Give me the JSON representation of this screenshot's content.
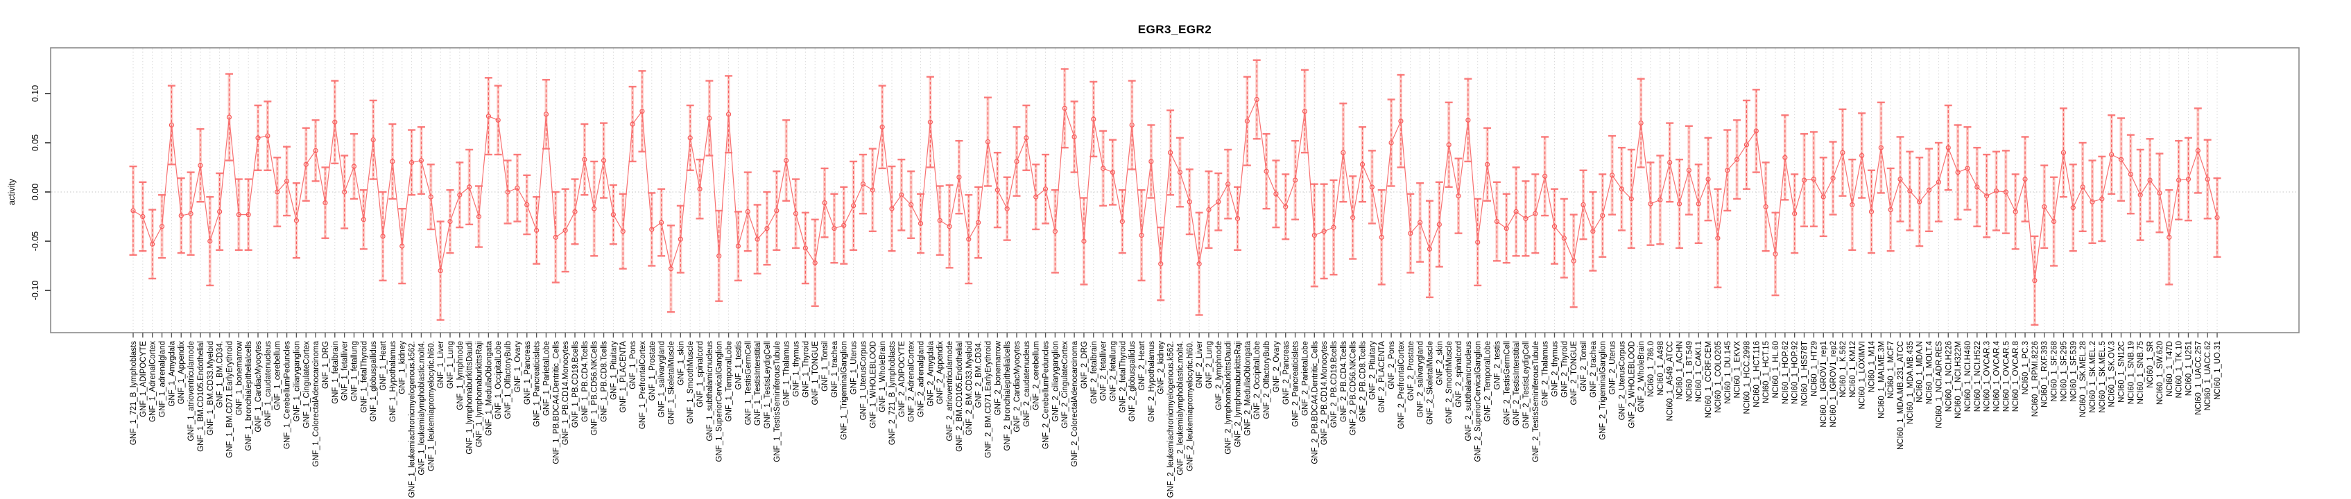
{
  "chart_data": {
    "type": "line",
    "title": "EGR3_EGR2",
    "ylabel": "activity",
    "xlabel": "",
    "ylim": [
      -0.145,
      0.147
    ],
    "yticks_labels": [
      "0.10",
      "0.05",
      "0.00",
      "-0.05",
      "-0.10"
    ],
    "ytick_values": [
      0.1,
      0.05,
      0.0,
      -0.05,
      -0.1
    ],
    "grid": {
      "vertical_dotted_per_category": true,
      "dotted_zero_line": true
    },
    "legend": null,
    "style": {
      "marker": "open-circle",
      "error_bars": true,
      "points_connected": true,
      "x_labels_rotated_90": true
    },
    "colors": {
      "series_line": "#f87070",
      "marker_stroke": "#f75b5b",
      "error_stem_dash": "#f75b5b",
      "error_band": "rgba(250,128,114,0.40)",
      "error_cap": "rgba(249,110,110,0.90)",
      "gridline": "#d9d9d9",
      "zero_line": "#c4c4c4",
      "axis_box": "#8a8a8a",
      "tick": "#555555",
      "text": "#000000",
      "background": "#ffffff"
    },
    "categories": [
      "GNF_1_721_B_lymphoblasts",
      "GNF_1_ADIPOCYTE",
      "GNF_1_AdrenalCortex",
      "GNF_1_adrenalgland",
      "GNF_1_Amygdala",
      "GNF_1_Appendix",
      "GNF_1_atrioventricularnode",
      "GNF_1_BM.CD105.Endothelial",
      "GNF_1_BM.CD33.Myeloid",
      "GNF_1_BM.CD34.",
      "GNF_1_BM.CD71.EarlyErythroid",
      "GNF_1_bonemarrow",
      "GNF_1_bronchialepithelialcells",
      "GNF_1_CardiacMyocytes",
      "GNF_1_caudatenucleus",
      "GNF_1_cerebellum",
      "GNF_1_CerebellumPeduncles",
      "GNF_1_ciliaryganglion",
      "GNF_1_CingulateCortex",
      "GNF_1_ColorectalAdenocarcinoma",
      "GNF_1_DRG",
      "GNF_1_fetalbrain",
      "GNF_1_fetalliver",
      "GNF_1_fetallung",
      "GNF_1_fetalThyroid",
      "GNF_1_globuspallidus",
      "GNF_1_Heart",
      "GNF_1_Hypothalamus",
      "GNF_1_kidney",
      "GNF_1_leukemiachronicmyelogenous.k562.",
      "GNF_1_leukemialymphoblastic.molt4.",
      "GNF_1_leukemiapromyelocytic.hl60.",
      "GNF_1_Liver",
      "GNF_1_Lung",
      "GNF_1_lymphnode",
      "GNF_1_lymphomaburkittsDaudi",
      "GNF_1_lymphomaburkittsRaji",
      "GNF_1_MedullaOblongata",
      "GNF_1_OccipitalLobe",
      "GNF_1_OlfactoryBulb",
      "GNF_1_Ovary",
      "GNF_1_Pancreas",
      "GNF_1_Pancreaticislets",
      "GNF_1_ParietalLobe",
      "GNF_1_PB.BDCA4.Dentritic_Cells",
      "GNF_1_PB.CD14.Monocytes",
      "GNF_1_PB.CD19.Bcells",
      "GNF_1_PB.CD4.Tcells",
      "GNF_1_PB.CD56.NKCells",
      "GNF_1_PB.CD8.Tcells",
      "GNF_1_Pituitary",
      "GNF_1_PLACENTA",
      "GNF_1_Pons",
      "GNF_1_PrefrontalCortex",
      "GNF_1_Prostate",
      "GNF_1_salivarygland",
      "GNF_1_SkeletalMuscle",
      "GNF_1_skin",
      "GNF_1_SmoothMuscle",
      "GNF_1_spinalcord",
      "GNF_1_subthalamicnucleus",
      "GNF_1_SuperiorCervicalGanglion",
      "GNF_1_TemporalLobe",
      "GNF_1_testis",
      "GNF_1_TestisGermCell",
      "GNF_1_TestisInterstitial",
      "GNF_1_TestisLeydigCell",
      "GNF_1_TestisSeminiferousTubule",
      "GNF_1_Thalamus",
      "GNF_1_thymus",
      "GNF_1_Thyroid",
      "GNF_1_TONGUE",
      "GNF_1_Tonsil",
      "GNF_1_trachea",
      "GNF_1_TrigeminalGanglion",
      "GNF_1_Uterus",
      "GNF_1_UterusCorpus",
      "GNF_1_WHOLEBLOOD",
      "GNF_1_WholeBrain",
      "GNF_2_721_B_lymphoblasts",
      "GNF_2_ADIPOCYTE",
      "GNF_2_AdrenalCortex",
      "GNF_2_adrenalgland",
      "GNF_2_Amygdala",
      "GNF_2_Appendix",
      "GNF_2_atrioventricularnode",
      "GNF_2_BM.CD105.Endothelial",
      "GNF_2_BM.CD33.Myeloid",
      "GNF_2_BM.CD34.",
      "GNF_2_BM.CD71.EarlyErythroid",
      "GNF_2_bonemarrow",
      "GNF_2_bronchialepithelialcells",
      "GNF_2_CardiacMyocytes",
      "GNF_2_caudatenucleus",
      "GNF_2_cerebellum",
      "GNF_2_CerebellumPeduncles",
      "GNF_2_ciliaryganglion",
      "GNF_2_CingulateCortex",
      "GNF_2_ColorectalAdenocarcinoma",
      "GNF_2_DRG",
      "GNF_2_fetalbrain",
      "GNF_2_fetalliver",
      "GNF_2_fetallung",
      "GNF_2_fetalThyroid",
      "GNF_2_globuspallidus",
      "GNF_2_Heart",
      "GNF_2_Hypothalamus",
      "GNF_2_kidney",
      "GNF_2_leukemiachronicmyelogenous.k562.",
      "GNF_2_leukemialymphoblastic.molt4.",
      "GNF_2_leukemiapromyelocytic.hl60.",
      "GNF_2_Liver",
      "GNF_2_Lung",
      "GNF_2_lymphnode",
      "GNF_2_lymphomaburkittsDaudi",
      "GNF_2_lymphomaburkittsRaji",
      "GNF_2_MedullaOblongata",
      "GNF_2_OccipitalLobe",
      "GNF_2_OlfactoryBulb",
      "GNF_2_Ovary",
      "GNF_2_Pancreas",
      "GNF_2_Pancreaticislets",
      "GNF_2_ParietalLobe",
      "GNF_2_PB.BDCA4.Dentritic_Cells",
      "GNF_2_PB.CD14.Monocytes",
      "GNF_2_PB.CD19.Bcells",
      "GNF_2_PB.CD4.Tcells",
      "GNF_2_PB.CD56.NKCells",
      "GNF_2_PB.CD8.Tcells",
      "GNF_2_Pituitary",
      "GNF_2_PLACENTA",
      "GNF_2_Pons",
      "GNF_2_PrefrontalCortex",
      "GNF_2_Prostate",
      "GNF_2_salivarygland",
      "GNF_2_SkeletalMuscle",
      "GNF_2_skin",
      "GNF_2_SmoothMuscle",
      "GNF_2_spinalcord",
      "GNF_2_subthalamicnucleus",
      "GNF_2_SuperiorCervicalGanglion",
      "GNF_2_TemporalLobe",
      "GNF_2_testis",
      "GNF_2_TestisGermCell",
      "GNF_2_TestisInterstitial",
      "GNF_2_TestisLeydigCell",
      "GNF_2_TestisSeminiferousTubule",
      "GNF_2_Thalamus",
      "GNF_2_thymus",
      "GNF_2_Thyroid",
      "GNF_2_TONGUE",
      "GNF_2_Tonsil",
      "GNF_2_trachea",
      "GNF_2_TrigeminalGanglion",
      "GNF_2_Uterus",
      "GNF_2_UterusCorpus",
      "GNF_2_WHOLEBLOOD",
      "GNF_2_WholeBrain",
      "NCI60_1_786.0",
      "NCI60_1_A498",
      "NCI60_1_A549_ATCC",
      "NCI60_1_ACHN",
      "NCI60_1_BT.549",
      "NCI60_1_CAKI.1",
      "NCI60_1_CCRF.CEM",
      "NCI60_1_COLO205",
      "NCI60_1_DU.145",
      "NCI60_1_EKVX",
      "NCI60_1_HCC.2998",
      "NCI60_1_HCT.116",
      "NCI60_1_HCT.15",
      "NCI60_1_HL.60",
      "NCI60_1_HOP.62",
      "NCI60_1_HOP.92",
      "NCI60_1_HS578T",
      "NCI60_1_HT29",
      "NCI60_1_IGROV1_rep1",
      "NCI60_1_IGROV1_rep2",
      "NCI60_1_K.562",
      "NCI60_1_KM12",
      "NCI60_1_LOXIMVI",
      "NCI60_1_M14",
      "NCI60_1_MALME.3M",
      "NCI60_1_MCF7",
      "NCI60_1_MDA.MB.231_ATCC",
      "NCI60_1_MDA.MB.435",
      "NCI60_1_MDA.N",
      "NCI60_1_MOLT.4",
      "NCI60_1_NCI.ADR.RES",
      "NCI60_1_NCI.H226",
      "NCI60_1_NCI.H322M",
      "NCI60_1_NCI.H460",
      "NCI60_1_NCI.H522",
      "NCI60_1_OVCAR.3",
      "NCI60_1_OVCAR.4",
      "NCI60_1_OVCAR.5",
      "NCI60_1_OVCAR.8",
      "NCI60_1_PC.3",
      "NCI60_1_RPMI.8226",
      "NCI60_1_RXF.393",
      "NCI60_1_SF.268",
      "NCI60_1_SF.295",
      "NCI60_1_SF.539",
      "NCI60_1_SK.MEL.28",
      "NCI60_1_SK.MEL.2",
      "NCI60_1_SK.MEL.5",
      "NCI60_1_SK.OV.3",
      "NCI60_1_SN12C",
      "NCI60_1_SNB.19",
      "NCI60_1_SNB.75",
      "NCI60_1_SR",
      "NCI60_1_SW.620",
      "NCI60_1_T47D",
      "NCI60_1_TK.10",
      "NCI60_1_U251",
      "NCI60_1_UACC.257",
      "NCI60_1_UACC.62",
      "NCI60_1_UO.31"
    ],
    "values": [
      -0.019,
      -0.025,
      -0.053,
      -0.035,
      0.068,
      -0.024,
      -0.022,
      0.027,
      -0.05,
      -0.02,
      0.076,
      -0.023,
      -0.023,
      0.055,
      0.057,
      0.0,
      0.011,
      -0.029,
      0.028,
      0.042,
      -0.011,
      0.071,
      0.0,
      0.026,
      -0.028,
      0.053,
      -0.045,
      0.031,
      -0.055,
      0.03,
      0.032,
      -0.005,
      -0.08,
      -0.03,
      -0.003,
      0.005,
      -0.025,
      0.077,
      0.073,
      0.0,
      0.004,
      -0.013,
      -0.039,
      0.079,
      -0.046,
      -0.039,
      -0.02,
      0.033,
      -0.017,
      0.032,
      -0.023,
      -0.04,
      0.069,
      0.082,
      -0.038,
      -0.031,
      -0.078,
      -0.048,
      0.055,
      0.003,
      0.075,
      -0.065,
      0.079,
      -0.055,
      -0.02,
      -0.048,
      -0.037,
      -0.019,
      0.032,
      -0.022,
      -0.057,
      -0.072,
      -0.011,
      -0.037,
      -0.034,
      -0.014,
      0.008,
      0.002,
      0.066,
      -0.017,
      -0.003,
      -0.013,
      -0.032,
      0.071,
      -0.029,
      -0.035,
      0.015,
      -0.048,
      -0.031,
      0.051,
      0.002,
      -0.017,
      0.031,
      0.055,
      -0.005,
      0.003,
      -0.04,
      0.085,
      0.056,
      -0.05,
      0.074,
      0.024,
      0.02,
      -0.03,
      0.068,
      -0.044,
      0.031,
      -0.073,
      0.04,
      0.02,
      -0.01,
      -0.073,
      -0.018,
      -0.01,
      0.008,
      -0.027,
      0.072,
      0.094,
      0.021,
      -0.002,
      -0.015,
      0.012,
      0.082,
      -0.044,
      -0.04,
      -0.036,
      0.04,
      -0.026,
      0.028,
      0.005,
      -0.046,
      0.05,
      0.072,
      -0.042,
      -0.031,
      -0.058,
      -0.033,
      0.048,
      -0.004,
      0.073,
      -0.051,
      0.028,
      -0.03,
      -0.037,
      -0.02,
      -0.027,
      -0.022,
      0.016,
      -0.035,
      -0.047,
      -0.07,
      -0.013,
      -0.04,
      -0.024,
      0.017,
      0.003,
      -0.007,
      0.07,
      -0.012,
      -0.008,
      0.03,
      -0.012,
      0.022,
      -0.012,
      0.013,
      -0.047,
      0.022,
      0.033,
      0.048,
      0.062,
      -0.015,
      -0.063,
      0.035,
      -0.022,
      0.012,
      0.013,
      -0.005,
      0.014,
      0.04,
      -0.013,
      0.037,
      -0.02,
      0.045,
      -0.018,
      0.013,
      0.001,
      -0.01,
      0.002,
      0.01,
      0.045,
      0.02,
      0.024,
      0.005,
      -0.004,
      0.001,
      0.0,
      -0.02,
      0.013,
      -0.09,
      -0.015,
      -0.03,
      0.04,
      -0.016,
      0.005,
      -0.01,
      -0.007,
      0.038,
      0.033,
      0.018,
      -0.003,
      0.012,
      -0.001,
      -0.046,
      0.012,
      0.013,
      0.042,
      0.013,
      -0.026
    ],
    "errors": [
      0.045,
      0.035,
      0.035,
      0.032,
      0.04,
      0.038,
      0.042,
      0.037,
      0.045,
      0.039,
      0.044,
      0.036,
      0.036,
      0.033,
      0.035,
      0.035,
      0.035,
      0.038,
      0.037,
      0.031,
      0.036,
      0.042,
      0.037,
      0.033,
      0.03,
      0.04,
      0.045,
      0.038,
      0.038,
      0.033,
      0.034,
      0.033,
      0.05,
      0.032,
      0.033,
      0.038,
      0.031,
      0.039,
      0.035,
      0.032,
      0.034,
      0.03,
      0.034,
      0.035,
      0.046,
      0.042,
      0.033,
      0.036,
      0.048,
      0.038,
      0.03,
      0.038,
      0.038,
      0.041,
      0.037,
      0.034,
      0.044,
      0.034,
      0.033,
      0.03,
      0.038,
      0.046,
      0.039,
      0.035,
      0.04,
      0.035,
      0.037,
      0.04,
      0.041,
      0.035,
      0.036,
      0.044,
      0.035,
      0.035,
      0.039,
      0.045,
      0.03,
      0.042,
      0.042,
      0.043,
      0.036,
      0.034,
      0.03,
      0.046,
      0.035,
      0.042,
      0.037,
      0.045,
      0.036,
      0.045,
      0.038,
      0.032,
      0.035,
      0.033,
      0.033,
      0.035,
      0.042,
      0.04,
      0.036,
      0.044,
      0.038,
      0.038,
      0.033,
      0.032,
      0.045,
      0.046,
      0.037,
      0.037,
      0.043,
      0.035,
      0.033,
      0.052,
      0.039,
      0.029,
      0.035,
      0.032,
      0.045,
      0.04,
      0.038,
      0.034,
      0.033,
      0.04,
      0.042,
      0.052,
      0.048,
      0.048,
      0.05,
      0.042,
      0.038,
      0.037,
      0.048,
      0.044,
      0.047,
      0.04,
      0.04,
      0.049,
      0.043,
      0.043,
      0.038,
      0.042,
      0.044,
      0.037,
      0.04,
      0.035,
      0.045,
      0.038,
      0.04,
      0.04,
      0.038,
      0.04,
      0.047,
      0.035,
      0.04,
      0.042,
      0.04,
      0.042,
      0.05,
      0.045,
      0.042,
      0.045,
      0.04,
      0.045,
      0.045,
      0.04,
      0.042,
      0.05,
      0.041,
      0.04,
      0.045,
      0.042,
      0.045,
      0.042,
      0.043,
      0.04,
      0.047,
      0.048,
      0.04,
      0.037,
      0.044,
      0.046,
      0.043,
      0.042,
      0.046,
      0.042,
      0.043,
      0.04,
      0.045,
      0.042,
      0.04,
      0.043,
      0.048,
      0.042,
      0.04,
      0.042,
      0.04,
      0.042,
      0.038,
      0.043,
      0.045,
      0.042,
      0.045,
      0.045,
      0.044,
      0.045,
      0.042,
      0.043,
      0.04,
      0.042,
      0.04,
      0.046,
      0.042,
      0.04,
      0.048,
      0.04,
      0.042,
      0.043,
      0.04,
      0.04
    ]
  }
}
